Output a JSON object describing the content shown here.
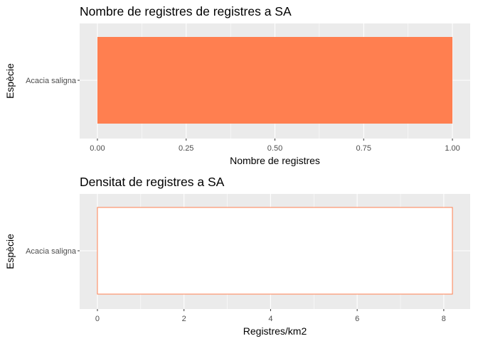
{
  "chart_data": [
    {
      "type": "bar",
      "orientation": "horizontal",
      "title": "Nombre de registres de registres a SA",
      "xlabel": "Nombre de registres",
      "ylabel": "Espècie",
      "categories": [
        "Acacia saligna"
      ],
      "values": [
        1
      ],
      "xlim": [
        0,
        1
      ],
      "x_ticks": [
        "0.00",
        "0.25",
        "0.50",
        "0.75",
        "1.00"
      ],
      "x_tick_values": [
        0,
        0.25,
        0.5,
        0.75,
        1
      ],
      "bar_fill": "#ff7f50",
      "bar_stroke": "none",
      "panel_bg": "#ebebeb",
      "grid": true
    },
    {
      "type": "bar",
      "orientation": "horizontal",
      "title": "Densitat de registres a SA",
      "xlabel": "Registres/km2",
      "ylabel": "Espècie",
      "categories": [
        "Acacia saligna"
      ],
      "values": [
        8.2
      ],
      "xlim": [
        0,
        8.2
      ],
      "x_ticks": [
        "0",
        "2",
        "4",
        "6",
        "8"
      ],
      "x_tick_values": [
        0,
        2,
        4,
        6,
        8
      ],
      "bar_fill": "#ffffff",
      "bar_stroke": "#ff7f50",
      "panel_bg": "#ebebeb",
      "grid": true
    }
  ]
}
